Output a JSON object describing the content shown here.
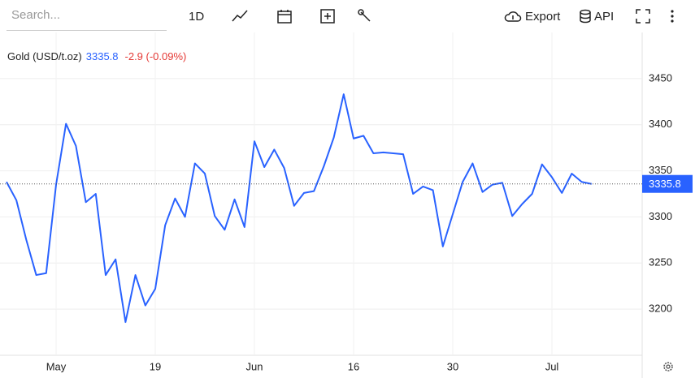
{
  "toolbar": {
    "search_placeholder": "Search...",
    "interval": "1D",
    "export": "Export",
    "api": "API"
  },
  "chart_data": {
    "type": "line",
    "categories": [
      null,
      null,
      null,
      null,
      null,
      "May",
      null,
      null,
      null,
      null,
      null,
      null,
      null,
      null,
      null,
      "19",
      null,
      null,
      null,
      null,
      null,
      null,
      null,
      null,
      null,
      "Jun",
      null,
      null,
      null,
      null,
      null,
      null,
      null,
      null,
      null,
      "16",
      null,
      null,
      null,
      null,
      null,
      null,
      null,
      null,
      null,
      "30",
      null,
      null,
      null,
      null,
      null,
      null,
      null,
      null,
      null,
      "Jul",
      null,
      null,
      null,
      null
    ],
    "series": [
      {
        "name": "Gold (USD/t.oz)",
        "color": "#2962ff",
        "values": [
          3338,
          3318,
          3275,
          3237,
          3239,
          3335,
          3401,
          3377,
          3316,
          3325,
          3237,
          3254,
          3186,
          3237,
          3204,
          3222,
          3291,
          3320,
          3300,
          3358,
          3347,
          3301,
          3286,
          3319,
          3289,
          3382,
          3354,
          3373,
          3353,
          3312,
          3326,
          3328,
          3355,
          3386,
          3433,
          3385,
          3388,
          3369,
          3370,
          3369,
          3368,
          3325,
          3333,
          3329,
          3268,
          3303,
          3338,
          3358,
          3327,
          3335,
          3337,
          3301,
          3314,
          3325,
          3357,
          3343,
          3326,
          3347,
          3338,
          3335.8
        ]
      }
    ],
    "change_label": "-2.9 (-0.09%)",
    "change_color": "#e53935",
    "ylim": [
      3150,
      3500
    ],
    "yticks": [
      3200,
      3250,
      3300,
      3350,
      3400,
      3450
    ],
    "grid": true
  }
}
